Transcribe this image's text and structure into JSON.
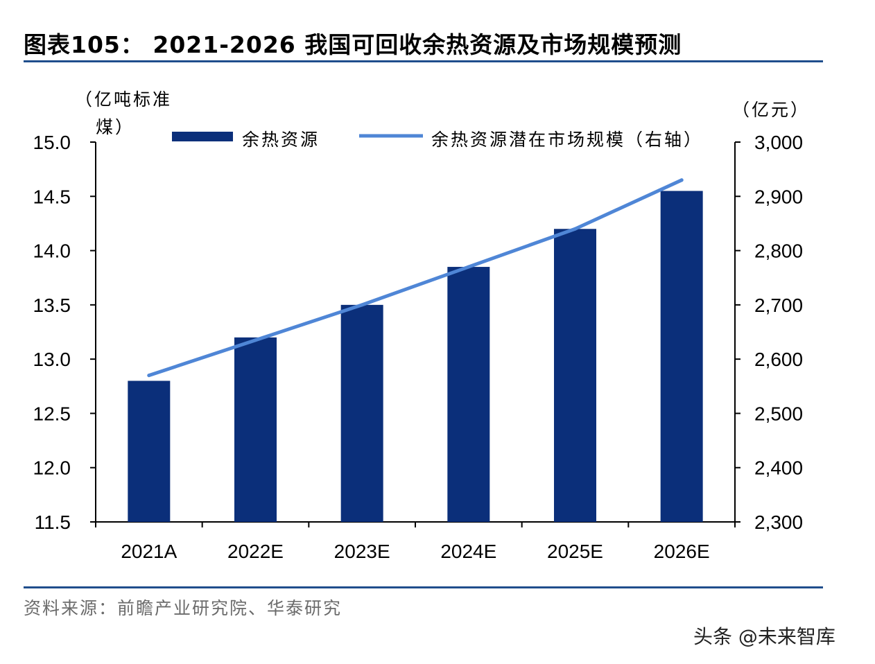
{
  "header": {
    "title": "图表105： 2021-2026 我国可回收余热资源及市场规模预测"
  },
  "footer": {
    "source": "资料来源：前瞻产业研究院、华泰研究",
    "watermark": "头条 @未来智库"
  },
  "colors": {
    "bar": "#0b2f7a",
    "line": "#4f86d6",
    "rule": "#1f4e8c"
  },
  "chart_data": {
    "type": "bar",
    "categories": [
      "2021A",
      "2022E",
      "2023E",
      "2024E",
      "2025E",
      "2026E"
    ],
    "series": [
      {
        "name": "余热资源",
        "type": "bar",
        "axis": "left",
        "values": [
          12.8,
          13.2,
          13.5,
          13.85,
          14.2,
          14.55
        ]
      },
      {
        "name": "余热资源潜在市场规模（右轴）",
        "type": "line",
        "axis": "right",
        "values": [
          2570,
          2635,
          2700,
          2770,
          2840,
          2930
        ]
      }
    ],
    "left_axis": {
      "label_line1": "（亿吨标准",
      "label_line2": "煤）",
      "range": [
        11.5,
        15.0
      ],
      "ticks": [
        "11.5",
        "12.0",
        "12.5",
        "13.0",
        "13.5",
        "14.0",
        "14.5",
        "15.0"
      ]
    },
    "right_axis": {
      "label": "（亿元）",
      "range": [
        2300,
        3000
      ],
      "ticks": [
        "2,300",
        "2,400",
        "2,500",
        "2,600",
        "2,700",
        "2,800",
        "2,900",
        "3,000"
      ]
    },
    "grid": false,
    "legend_position": "top"
  }
}
